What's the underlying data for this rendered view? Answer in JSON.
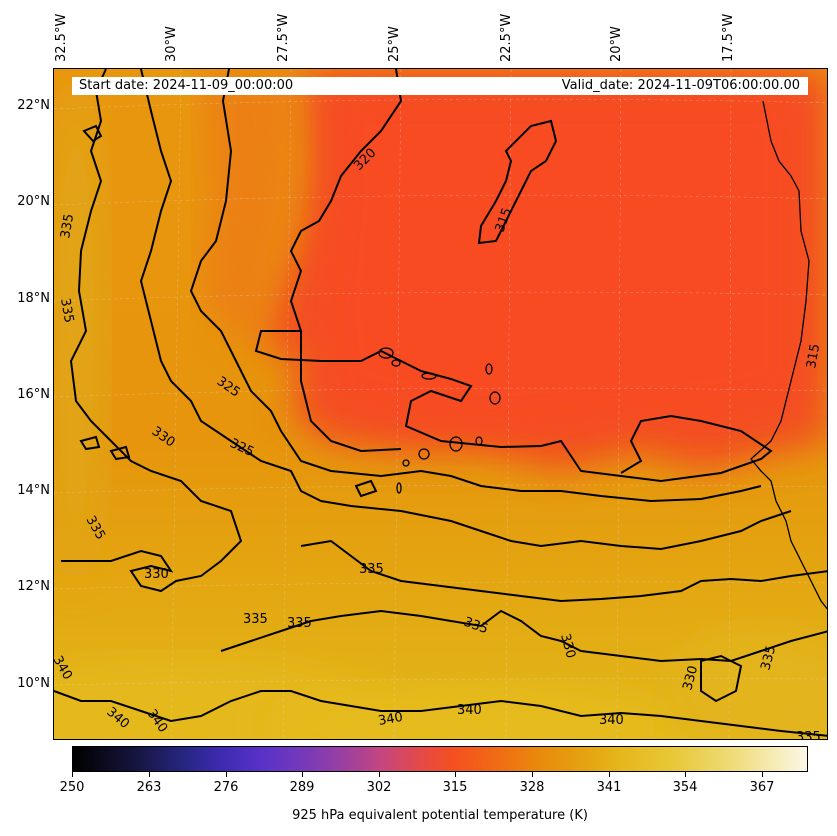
{
  "map": {
    "start_date": "Start date: 2024-11-09_00:00:00",
    "valid_date": "Valid_date: 2024-11-09T06:00:00.00",
    "longitude_labels": [
      "32.5°W",
      "30°W",
      "27.5°W",
      "25°W",
      "22.5°W",
      "20°W",
      "17.5°W"
    ],
    "latitude_labels": [
      "22°N",
      "20°N",
      "18°N",
      "16°N",
      "14°N",
      "12°N",
      "10°N"
    ],
    "contour_labels": {
      "c320": "320",
      "c315a": "315",
      "c315b": "315",
      "c325a": "325",
      "c325b": "325",
      "c330a": "330",
      "c330b": "330",
      "c330c": "330",
      "c330d": "330",
      "c335a": "335",
      "c335b": "335",
      "c335c": "335",
      "c335d": "335",
      "c335e": "335",
      "c335f": "335",
      "c335g": "335",
      "c335h": "335",
      "c335i": "335",
      "c340a": "340",
      "c340b": "340",
      "c340c": "340",
      "c340d": "340",
      "c340e": "340",
      "c340f": "340"
    },
    "colormap": "CMRmap",
    "colors": {
      "cold_core": "#f94e22",
      "mid": "#e98a0c",
      "warm": "#e2b717",
      "coast": "#000000"
    }
  },
  "colorbar": {
    "tick_labels": [
      "250",
      "263",
      "276",
      "289",
      "302",
      "315",
      "328",
      "341",
      "354",
      "367"
    ],
    "title": "925 hPa equivalent potential temperature (K)",
    "range": [
      250,
      375
    ]
  }
}
